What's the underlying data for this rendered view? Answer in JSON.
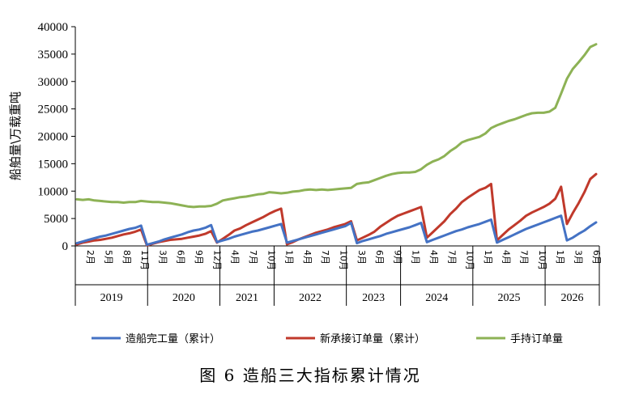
{
  "chart_data": {
    "type": "line",
    "title": "图 6  造船三大指标累计情况",
    "ylabel": "船舶量\\万载重吨",
    "ylim": [
      0,
      40000
    ],
    "yticks": [
      0,
      5000,
      10000,
      15000,
      20000,
      25000,
      30000,
      35000,
      40000
    ],
    "grid": false,
    "legend_position": "bottom",
    "years": [
      {
        "label": "2019",
        "months": [
          "2月",
          "5月",
          "8月",
          "11月"
        ]
      },
      {
        "label": "2020",
        "months": [
          "3月",
          "6月",
          "9月",
          "12月"
        ]
      },
      {
        "label": "2021",
        "months": [
          "4月",
          "7月",
          "10月"
        ]
      },
      {
        "label": "2022",
        "months": [
          "1月",
          "4月",
          "7月",
          "10月"
        ]
      },
      {
        "label": "2023",
        "months": [
          "3月",
          "6月",
          "9月"
        ]
      },
      {
        "label": "2024",
        "months": [
          "1月",
          "4月",
          "7月",
          "10月"
        ]
      },
      {
        "label": "2025",
        "months": [
          "1月",
          "4月",
          "7月",
          "10月"
        ]
      },
      {
        "label": "2026",
        "months": [
          "1月",
          "3月",
          "6月"
        ]
      }
    ],
    "series": [
      {
        "name": "造船完工量（累计）",
        "color": "#4472C4",
        "values": [
          500,
          800,
          1100,
          1400,
          1700,
          1900,
          2200,
          2500,
          2800,
          3100,
          3300,
          3700,
          200,
          500,
          800,
          1200,
          1500,
          1800,
          2100,
          2500,
          2800,
          3000,
          3300,
          3800,
          700,
          1000,
          1300,
          1700,
          2000,
          2300,
          2600,
          2800,
          3100,
          3400,
          3700,
          4000,
          600,
          900,
          1200,
          1500,
          1800,
          2100,
          2400,
          2700,
          3000,
          3300,
          3600,
          4200,
          500,
          900,
          1200,
          1500,
          1800,
          2200,
          2500,
          2800,
          3100,
          3400,
          3800,
          4200,
          700,
          1100,
          1500,
          1900,
          2300,
          2700,
          3000,
          3400,
          3700,
          4000,
          4400,
          4800,
          600,
          1100,
          1600,
          2100,
          2600,
          3100,
          3500,
          3900,
          4300,
          4700,
          5100,
          5500,
          1000,
          1500,
          2200,
          2800,
          3600,
          4300
        ]
      },
      {
        "name": "新承接订单量（累计）",
        "color": "#C0392B",
        "values": [
          300,
          600,
          800,
          1000,
          1100,
          1300,
          1500,
          1800,
          2100,
          2300,
          2600,
          3000,
          100,
          400,
          700,
          900,
          1100,
          1200,
          1300,
          1500,
          1700,
          1900,
          2200,
          2700,
          600,
          1300,
          2000,
          2800,
          3200,
          3800,
          4300,
          4800,
          5300,
          5900,
          6400,
          6800,
          300,
          700,
          1200,
          1600,
          2000,
          2400,
          2700,
          3000,
          3400,
          3700,
          4000,
          4500,
          1000,
          1500,
          2000,
          2600,
          3500,
          4200,
          4900,
          5500,
          5900,
          6300,
          6700,
          7100,
          1500,
          2500,
          3500,
          4500,
          5800,
          6800,
          8000,
          8800,
          9500,
          10200,
          10600,
          11300,
          1000,
          2000,
          3000,
          3800,
          4600,
          5500,
          6100,
          6600,
          7100,
          7700,
          8600,
          10800,
          4000,
          6000,
          7800,
          9800,
          12200,
          13100
        ]
      },
      {
        "name": "手持订单量",
        "color": "#8DB255",
        "values": [
          8500,
          8400,
          8500,
          8300,
          8200,
          8100,
          8000,
          8000,
          7900,
          8000,
          8000,
          8200,
          8100,
          8000,
          8000,
          7900,
          7800,
          7600,
          7400,
          7200,
          7100,
          7200,
          7200,
          7300,
          7700,
          8300,
          8500,
          8700,
          8900,
          9000,
          9200,
          9400,
          9500,
          9800,
          9700,
          9600,
          9700,
          9900,
          10000,
          10200,
          10300,
          10200,
          10300,
          10200,
          10300,
          10400,
          10500,
          10600,
          11300,
          11500,
          11600,
          12000,
          12400,
          12800,
          13100,
          13300,
          13400,
          13400,
          13500,
          14000,
          14800,
          15400,
          15800,
          16400,
          17300,
          18000,
          18900,
          19300,
          19600,
          19900,
          20500,
          21500,
          22000,
          22400,
          22800,
          23100,
          23500,
          23900,
          24200,
          24300,
          24300,
          24500,
          25200,
          27800,
          30500,
          32300,
          33500,
          34800,
          36300,
          36800
        ]
      }
    ]
  }
}
